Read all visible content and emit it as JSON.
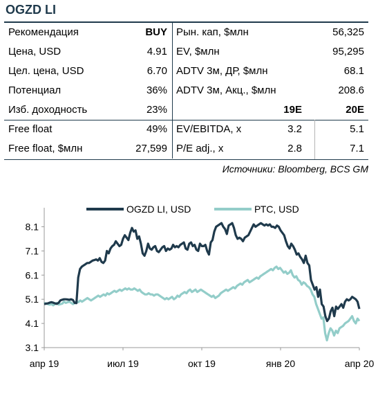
{
  "title": "OGZD LI",
  "table": {
    "left": [
      {
        "label": "Рекомендация",
        "value": "BUY"
      },
      {
        "label": "Цена, USD",
        "value": "4.91"
      },
      {
        "label": "Цел. цена, USD",
        "value": "6.70"
      },
      {
        "label": "Потенциал",
        "value": "36%"
      },
      {
        "label": "Изб. доходность",
        "value": "23%"
      },
      {
        "label": "Free float",
        "value": "49%"
      },
      {
        "label": "Free float, $млн",
        "value": "27,599"
      }
    ],
    "right_top": [
      {
        "label": "Рын. кап, $млн",
        "value": "56,325"
      },
      {
        "label": "EV, $млн",
        "value": "95,295"
      },
      {
        "label": "ADTV 3м, ДР, $млн",
        "value": "68.1"
      },
      {
        "label": "ADTV 3м, Акц., $млн",
        "value": "208.6"
      }
    ],
    "multiples_header": {
      "col1": "19E",
      "col2": "20E"
    },
    "multiples": [
      {
        "label": "EV/EBITDA, x",
        "e19": "3.2",
        "e20": "5.1"
      },
      {
        "label": "P/E adj., x",
        "e19": "2.8",
        "e20": "7.1"
      }
    ]
  },
  "source": "Источники: Bloomberg, BCS GM",
  "chart_data": {
    "type": "line",
    "x_ticks": [
      "апр 19",
      "июл 19",
      "окт 19",
      "янв 20",
      "апр 20"
    ],
    "y_ticks": [
      "3.1",
      "4.1",
      "5.1",
      "6.1",
      "7.1",
      "8.1"
    ],
    "ylim": [
      3.1,
      8.6
    ],
    "grid": false,
    "legend_position": "top",
    "colors": {
      "ogzd": "#1f3a4c",
      "rts": "#93cdc9"
    },
    "series": [
      {
        "name": "OGZD LI, USD",
        "values": [
          4.9,
          4.92,
          4.93,
          4.96,
          4.98,
          4.96,
          4.93,
          4.91,
          4.95,
          5.05,
          5.08,
          5.1,
          5.1,
          5.09,
          5.08,
          5.1,
          5.07,
          4.95,
          4.94,
          6.0,
          6.35,
          6.45,
          6.5,
          6.55,
          6.6,
          6.6,
          6.65,
          6.7,
          6.72,
          6.75,
          6.7,
          6.8,
          6.65,
          6.6,
          6.7,
          7.1,
          7.0,
          7.2,
          7.3,
          7.35,
          7.5,
          7.4,
          7.3,
          7.35,
          7.6,
          7.75,
          7.65,
          7.55,
          7.85,
          8.05,
          7.9,
          7.95,
          7.6,
          7.7,
          7.4,
          7.0,
          6.9,
          7.1,
          7.4,
          7.2,
          7.15,
          7.25,
          7.3,
          7.1,
          7.05,
          7.15,
          7.25,
          7.3,
          7.1,
          7.2,
          7.15,
          7.2,
          7.35,
          7.25,
          7.3,
          7.25,
          7.35,
          7.4,
          7.45,
          7.2,
          7.15,
          7.4,
          7.45,
          7.3,
          7.35,
          7.15,
          7.1,
          7.4,
          7.3,
          7.3,
          7.35,
          7.1,
          6.95,
          7.45,
          7.55,
          7.9,
          8.1,
          8.15,
          8.2,
          8.25,
          8.1,
          8.0,
          7.8,
          8.15,
          8.2,
          8.25,
          8.05,
          7.75,
          7.6,
          7.65,
          7.6,
          7.5,
          7.65,
          7.7,
          7.75,
          7.9,
          8.05,
          8.2,
          8.1,
          8.15,
          8.2,
          8.25,
          8.2,
          8.15,
          8.2,
          8.15,
          8.2,
          8.1,
          8.1,
          8.05,
          8.15,
          8.1,
          7.95,
          7.85,
          7.75,
          7.5,
          7.3,
          7.2,
          7.4,
          7.3,
          7.15,
          6.95,
          7.0,
          6.85,
          6.75,
          6.6,
          6.9,
          6.6,
          6.5,
          5.9,
          5.7,
          5.5,
          5.6,
          5.2,
          5.5,
          4.9,
          4.8,
          4.4,
          4.2,
          4.3,
          4.6,
          4.75,
          4.4,
          4.8,
          4.7,
          4.8,
          4.9,
          4.75,
          5.0,
          5.1,
          5.05,
          5.1,
          5.2,
          5.15,
          5.1,
          5.0,
          4.7
        ]
      },
      {
        "name": "РТС, USD",
        "values": [
          4.95,
          4.92,
          4.9,
          4.88,
          4.9,
          4.85,
          4.9,
          4.95,
          4.88,
          4.9,
          4.92,
          5.0,
          4.95,
          4.98,
          5.0,
          4.95,
          4.9,
          4.95,
          5.0,
          4.98,
          5.05,
          5.0,
          5.05,
          5.1,
          5.15,
          5.1,
          5.05,
          5.1,
          5.15,
          5.2,
          5.25,
          5.2,
          5.25,
          5.3,
          5.25,
          5.35,
          5.3,
          5.35,
          5.4,
          5.45,
          5.4,
          5.45,
          5.5,
          5.45,
          5.5,
          5.55,
          5.5,
          5.55,
          5.5,
          5.5,
          5.55,
          5.5,
          5.45,
          5.5,
          5.4,
          5.35,
          5.3,
          5.3,
          5.35,
          5.3,
          5.3,
          5.25,
          5.3,
          5.3,
          5.25,
          5.2,
          5.15,
          5.1,
          5.15,
          5.1,
          5.15,
          5.2,
          5.1,
          5.15,
          5.25,
          5.2,
          5.3,
          5.35,
          5.4,
          5.35,
          5.45,
          5.5,
          5.4,
          5.45,
          5.5,
          5.4,
          5.45,
          5.5,
          5.45,
          5.4,
          5.35,
          5.3,
          5.25,
          5.2,
          5.25,
          5.15,
          5.2,
          5.25,
          5.35,
          5.4,
          5.45,
          5.5,
          5.45,
          5.5,
          5.55,
          5.6,
          5.55,
          5.65,
          5.7,
          5.75,
          5.7,
          5.8,
          5.85,
          5.9,
          5.8,
          5.85,
          5.9,
          5.95,
          6.0,
          5.95,
          6.05,
          6.1,
          6.15,
          6.2,
          6.25,
          6.3,
          6.35,
          6.3,
          6.4,
          6.45,
          6.35,
          6.4,
          6.3,
          6.2,
          6.25,
          6.15,
          6.2,
          6.3,
          6.1,
          6.0,
          6.05,
          5.9,
          5.85,
          5.7,
          5.8,
          5.75,
          5.65,
          5.6,
          5.5,
          5.3,
          5.2,
          4.9,
          4.7,
          4.5,
          4.3,
          4.35,
          3.7,
          3.4,
          3.7,
          3.9,
          3.8,
          3.6,
          3.8,
          3.7,
          3.9,
          3.95,
          4.0,
          4.1,
          4.15,
          4.2,
          4.3,
          4.4,
          4.2,
          4.1,
          4.3,
          4.2
        ]
      }
    ]
  }
}
